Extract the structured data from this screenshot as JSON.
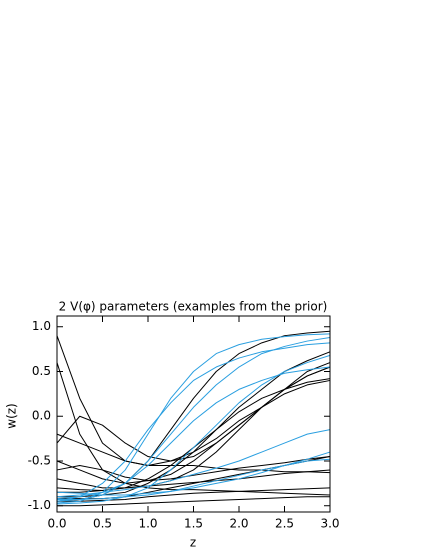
{
  "chart_data": {
    "type": "line",
    "title": "2 V(φ) parameters (examples from the prior)",
    "x_label": "z",
    "y_label": "w(z)",
    "x": [
      0,
      0.25,
      0.5,
      0.75,
      1.0,
      1.25,
      1.5,
      1.75,
      2.0,
      2.25,
      2.5,
      2.75,
      3.0
    ],
    "xlim": [
      0,
      3
    ],
    "ylim": [
      -1.07,
      1.12
    ],
    "xticks": [
      {
        "value": 0,
        "label": "0.0"
      },
      {
        "value": 0.5,
        "label": "0.5"
      },
      {
        "value": 1,
        "label": "1.0"
      },
      {
        "value": 1.5,
        "label": "1.5"
      },
      {
        "value": 2,
        "label": "2.0"
      },
      {
        "value": 2.5,
        "label": "2.5"
      },
      {
        "value": 3,
        "label": "3.0"
      }
    ],
    "yticks": [
      {
        "value": -1,
        "label": "-1.0"
      },
      {
        "value": -0.5,
        "label": "-0.5"
      },
      {
        "value": 0,
        "label": "0.0"
      },
      {
        "value": 0.5,
        "label": "0.5"
      },
      {
        "value": 1,
        "label": "1.0"
      }
    ],
    "series": [
      {
        "color": "#000000",
        "values": [
          -0.95,
          -0.93,
          -0.88,
          -0.75,
          -0.5,
          -0.15,
          0.2,
          0.5,
          0.7,
          0.82,
          0.9,
          0.93,
          0.95
        ]
      },
      {
        "color": "#000000",
        "values": [
          -0.9,
          -0.9,
          -0.88,
          -0.85,
          -0.75,
          -0.6,
          -0.4,
          -0.15,
          0.1,
          0.3,
          0.5,
          0.62,
          0.72
        ]
      },
      {
        "color": "#000000",
        "values": [
          0.9,
          0.2,
          -0.3,
          -0.5,
          -0.55,
          -0.55,
          -0.55,
          -0.58,
          -0.6,
          -0.6,
          -0.62,
          -0.62,
          -0.63
        ]
      },
      {
        "color": "#000000",
        "values": [
          -0.3,
          0.0,
          -0.1,
          -0.3,
          -0.45,
          -0.5,
          -0.45,
          -0.3,
          -0.1,
          0.1,
          0.3,
          0.45,
          0.55
        ]
      },
      {
        "color": "#000000",
        "values": [
          -0.95,
          -0.95,
          -0.94,
          -0.93,
          -0.9,
          -0.88,
          -0.86,
          -0.85,
          -0.84,
          -0.83,
          -0.82,
          -0.81,
          -0.8
        ]
      },
      {
        "color": "#000000",
        "values": [
          -0.2,
          -0.3,
          -0.4,
          -0.5,
          -0.55,
          -0.5,
          -0.4,
          -0.25,
          -0.05,
          0.1,
          0.25,
          0.35,
          0.4
        ]
      },
      {
        "color": "#000000",
        "values": [
          -0.5,
          -0.6,
          -0.7,
          -0.75,
          -0.72,
          -0.65,
          -0.5,
          -0.3,
          -0.1,
          0.1,
          0.3,
          0.45,
          0.55
        ]
      },
      {
        "color": "#000000",
        "values": [
          -0.85,
          -0.85,
          -0.83,
          -0.8,
          -0.78,
          -0.76,
          -0.74,
          -0.72,
          -0.7,
          -0.67,
          -0.64,
          -0.62,
          -0.6
        ]
      },
      {
        "color": "#000000",
        "values": [
          -0.7,
          -0.75,
          -0.8,
          -0.8,
          -0.78,
          -0.72,
          -0.6,
          -0.4,
          -0.15,
          0.1,
          0.3,
          0.5,
          0.6
        ]
      },
      {
        "color": "#000000",
        "values": [
          -0.92,
          -0.92,
          -0.92,
          -0.9,
          -0.85,
          -0.8,
          -0.75,
          -0.7,
          -0.65,
          -0.6,
          -0.55,
          -0.5,
          -0.45
        ]
      },
      {
        "color": "#000000",
        "values": [
          0.6,
          -0.2,
          -0.6,
          -0.75,
          -0.8,
          -0.82,
          -0.82,
          -0.83,
          -0.84,
          -0.85,
          -0.86,
          -0.87,
          -0.88
        ]
      },
      {
        "color": "#000000",
        "values": [
          -0.8,
          -0.82,
          -0.83,
          -0.8,
          -0.7,
          -0.55,
          -0.35,
          -0.15,
          0.05,
          0.2,
          0.3,
          0.38,
          0.42
        ]
      },
      {
        "color": "#000000",
        "values": [
          -1.0,
          -1.0,
          -0.99,
          -0.98,
          -0.97,
          -0.96,
          -0.95,
          -0.94,
          -0.93,
          -0.92,
          -0.91,
          -0.9,
          -0.9
        ]
      },
      {
        "color": "#000000",
        "values": [
          -0.6,
          -0.55,
          -0.6,
          -0.68,
          -0.72,
          -0.7,
          -0.66,
          -0.62,
          -0.58,
          -0.55,
          -0.52,
          -0.48,
          -0.45
        ]
      },
      {
        "color": "#2a9fe0",
        "values": [
          -0.97,
          -0.95,
          -0.85,
          -0.6,
          -0.2,
          0.2,
          0.5,
          0.7,
          0.8,
          0.86,
          0.89,
          0.91,
          0.92
        ]
      },
      {
        "color": "#2a9fe0",
        "values": [
          -0.95,
          -0.93,
          -0.88,
          -0.75,
          -0.5,
          -0.2,
          0.1,
          0.35,
          0.55,
          0.7,
          0.78,
          0.84,
          0.88
        ]
      },
      {
        "color": "#2a9fe0",
        "values": [
          -0.9,
          -0.88,
          -0.85,
          -0.82,
          -0.78,
          -0.72,
          -0.65,
          -0.58,
          -0.5,
          -0.4,
          -0.3,
          -0.2,
          -0.15
        ]
      },
      {
        "color": "#2a9fe0",
        "values": [
          -0.98,
          -0.97,
          -0.95,
          -0.9,
          -0.8,
          -0.6,
          -0.35,
          -0.1,
          0.15,
          0.35,
          0.5,
          0.6,
          0.68
        ]
      },
      {
        "color": "#2a9fe0",
        "values": [
          -0.85,
          -0.86,
          -0.88,
          -0.88,
          -0.86,
          -0.84,
          -0.8,
          -0.75,
          -0.7,
          -0.63,
          -0.55,
          -0.48,
          -0.4
        ]
      },
      {
        "color": "#2a9fe0",
        "values": [
          -0.95,
          -0.9,
          -0.75,
          -0.5,
          -0.15,
          0.15,
          0.4,
          0.55,
          0.65,
          0.72,
          0.76,
          0.8,
          0.82
        ]
      },
      {
        "color": "#2a9fe0",
        "values": [
          -0.93,
          -0.93,
          -0.92,
          -0.9,
          -0.88,
          -0.84,
          -0.78,
          -0.72,
          -0.66,
          -0.6,
          -0.55,
          -0.5,
          -0.48
        ]
      },
      {
        "color": "#2a9fe0",
        "values": [
          -0.92,
          -0.9,
          -0.85,
          -0.75,
          -0.55,
          -0.3,
          -0.05,
          0.15,
          0.3,
          0.4,
          0.48,
          0.52,
          0.55
        ]
      }
    ]
  }
}
